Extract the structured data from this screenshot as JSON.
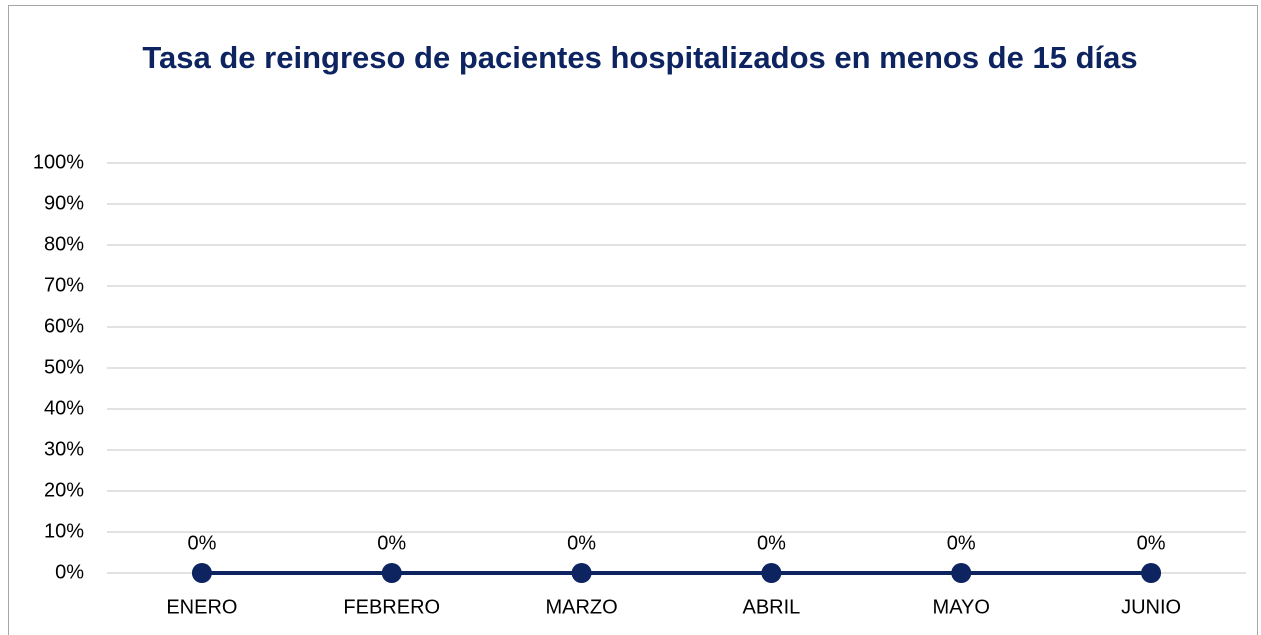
{
  "chart_data": {
    "type": "line",
    "title": "Tasa de reingreso de pacientes hospitalizados en menos de 15 días",
    "categories": [
      "ENERO",
      "FEBRERO",
      "MARZO",
      "ABRIL",
      "MAYO",
      "JUNIO"
    ],
    "series": [
      {
        "name": "Tasa de reingreso",
        "color": "#0d2461",
        "values": [
          0,
          0,
          0,
          0,
          0,
          0
        ],
        "value_labels": [
          "0%",
          "0%",
          "0%",
          "0%",
          "0%",
          "0%"
        ]
      }
    ],
    "ylim": [
      0,
      100
    ],
    "yticks": [
      {
        "value": 0,
        "label": "0%"
      },
      {
        "value": 10,
        "label": "10%"
      },
      {
        "value": 20,
        "label": "20%"
      },
      {
        "value": 30,
        "label": "30%"
      },
      {
        "value": 40,
        "label": "40%"
      },
      {
        "value": 50,
        "label": "50%"
      },
      {
        "value": 60,
        "label": "60%"
      },
      {
        "value": 70,
        "label": "70%"
      },
      {
        "value": 80,
        "label": "80%"
      },
      {
        "value": 90,
        "label": "90%"
      },
      {
        "value": 100,
        "label": "100%"
      }
    ],
    "grid": true
  }
}
